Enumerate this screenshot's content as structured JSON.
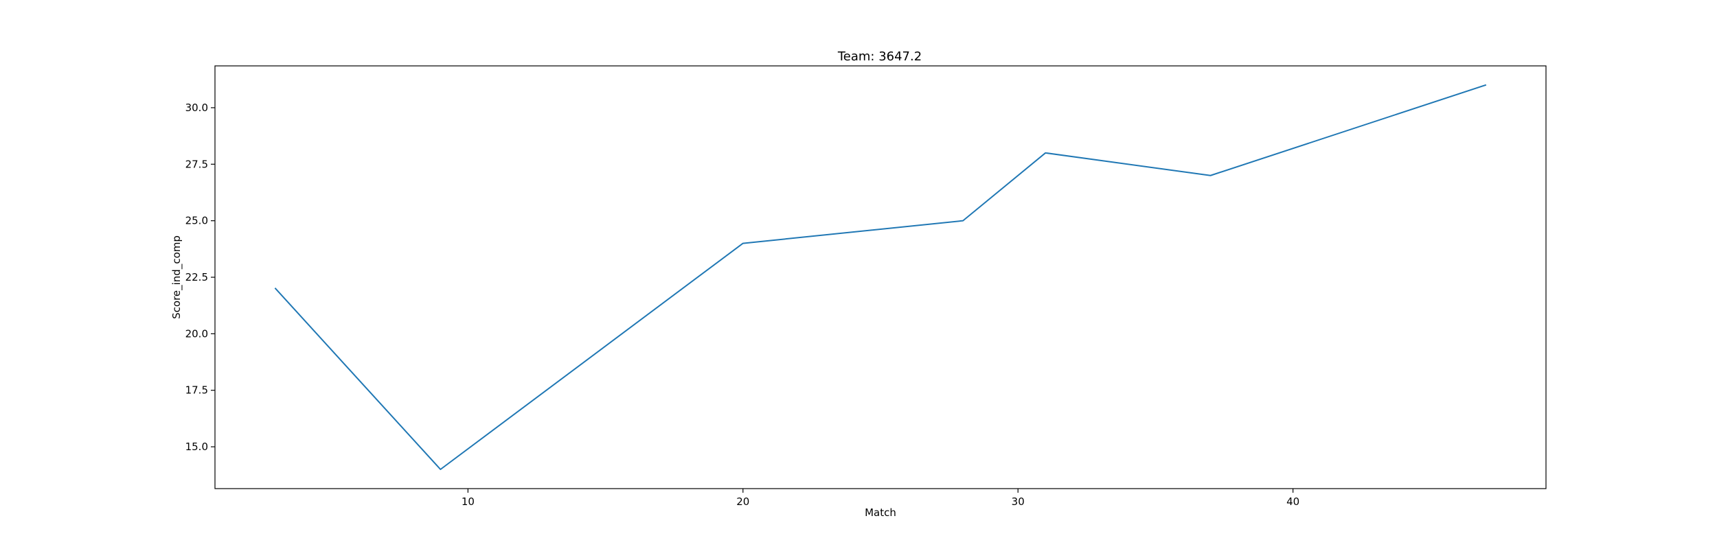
{
  "chart_data": {
    "type": "line",
    "title": "Team: 3647.2",
    "xlabel": "Match",
    "ylabel": "Score_ind_comp",
    "xlim": [
      0.8,
      49.2
    ],
    "ylim": [
      13.15,
      31.85
    ],
    "x_ticks": [
      10,
      20,
      30,
      40
    ],
    "y_ticks": [
      15.0,
      17.5,
      20.0,
      22.5,
      25.0,
      27.5,
      30.0
    ],
    "x_tick_labels": [
      "10",
      "20",
      "30",
      "40"
    ],
    "y_tick_labels": [
      "15.0",
      "17.5",
      "20.0",
      "22.5",
      "25.0",
      "27.5",
      "30.0"
    ],
    "grid": false,
    "legend": "none",
    "series": [
      {
        "color": "#1f77b4",
        "x": [
          3,
          9,
          20,
          28,
          31,
          37,
          47
        ],
        "y": [
          22,
          14,
          24,
          25,
          28,
          27,
          31
        ]
      }
    ]
  }
}
